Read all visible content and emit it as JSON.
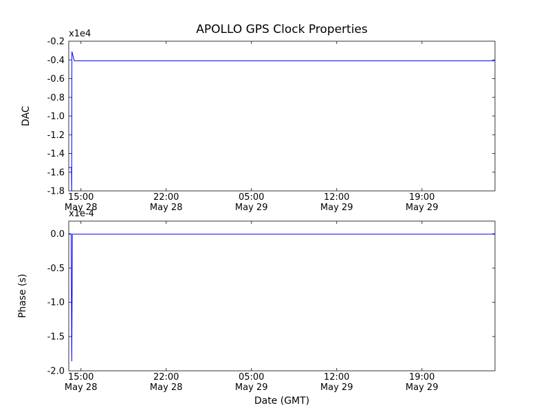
{
  "title": "APOLLO GPS Clock Properties",
  "xlabel": "Date (GMT)",
  "chart_data": [
    {
      "type": "line",
      "panel": "top",
      "title": "APOLLO GPS Clock Properties",
      "ylabel": "DAC",
      "offset_label": "x1e4",
      "line_color": "#0000ff",
      "frame_color": "#333333",
      "x_unit": "hours since May 28 00:00 GMT",
      "xlim": [
        14,
        49
      ],
      "ylim": [
        -1.8,
        -0.2
      ],
      "grid": false,
      "legend": null,
      "yticks": [
        {
          "v": -0.2,
          "label": "-0.2"
        },
        {
          "v": -0.4,
          "label": "-0.4"
        },
        {
          "v": -0.6,
          "label": "-0.6"
        },
        {
          "v": -0.8,
          "label": "-0.8"
        },
        {
          "v": -1.0,
          "label": "-1.0"
        },
        {
          "v": -1.2,
          "label": "-1.2"
        },
        {
          "v": -1.4,
          "label": "-1.4"
        },
        {
          "v": -1.6,
          "label": "-1.6"
        },
        {
          "v": -1.8,
          "label": "-1.8"
        }
      ],
      "xticks": [
        {
          "v": 15,
          "line1": "15:00",
          "line2": "May 28"
        },
        {
          "v": 22,
          "line1": "22:00",
          "line2": "May 28"
        },
        {
          "v": 29,
          "line1": "05:00",
          "line2": "May 29"
        },
        {
          "v": 36,
          "line1": "12:00",
          "line2": "May 29"
        },
        {
          "v": 43,
          "line1": "19:00",
          "line2": "May 29"
        }
      ],
      "series": [
        {
          "name": "DAC",
          "x": [
            14.0,
            14.22,
            14.24,
            14.26,
            14.45,
            49.0
          ],
          "y": [
            -1.55,
            -1.55,
            -1.85,
            -0.31,
            -0.41,
            -0.41
          ],
          "note": "values in units of 1e4 DAC counts; initial point ~-1.55e4, spike clipped below -1.8e4 then peak -0.31e4, settles at ~-0.41e4"
        }
      ]
    },
    {
      "type": "line",
      "panel": "bottom",
      "title": "",
      "ylabel": "Phase (s)",
      "offset_label": "x1e-4",
      "line_color": "#0000ff",
      "frame_color": "#333333",
      "x_unit": "hours since May 28 00:00 GMT",
      "xlim": [
        14,
        49
      ],
      "ylim": [
        -2.0,
        0.185
      ],
      "grid": false,
      "legend": null,
      "yticks": [
        {
          "v": 0.0,
          "label": "0.0"
        },
        {
          "v": -0.5,
          "label": "-0.5"
        },
        {
          "v": -1.0,
          "label": "-1.0"
        },
        {
          "v": -1.5,
          "label": "-1.5"
        },
        {
          "v": -2.0,
          "label": "-2.0"
        }
      ],
      "xticks": [
        {
          "v": 15,
          "line1": "15:00",
          "line2": "May 28"
        },
        {
          "v": 22,
          "line1": "22:00",
          "line2": "May 28"
        },
        {
          "v": 29,
          "line1": "05:00",
          "line2": "May 29"
        },
        {
          "v": 36,
          "line1": "12:00",
          "line2": "May 29"
        },
        {
          "v": 43,
          "line1": "19:00",
          "line2": "May 29"
        }
      ],
      "series": [
        {
          "name": "Phase (s)",
          "x": [
            14.0,
            14.2,
            14.25,
            14.3,
            49.0
          ],
          "y": [
            -0.005,
            -0.005,
            -1.86,
            -0.005,
            -0.005
          ],
          "note": "values in units of 1e-4 seconds; flat near 0 with spike down to ~-1.86e-4 at ~14:15 May 28"
        }
      ]
    }
  ]
}
